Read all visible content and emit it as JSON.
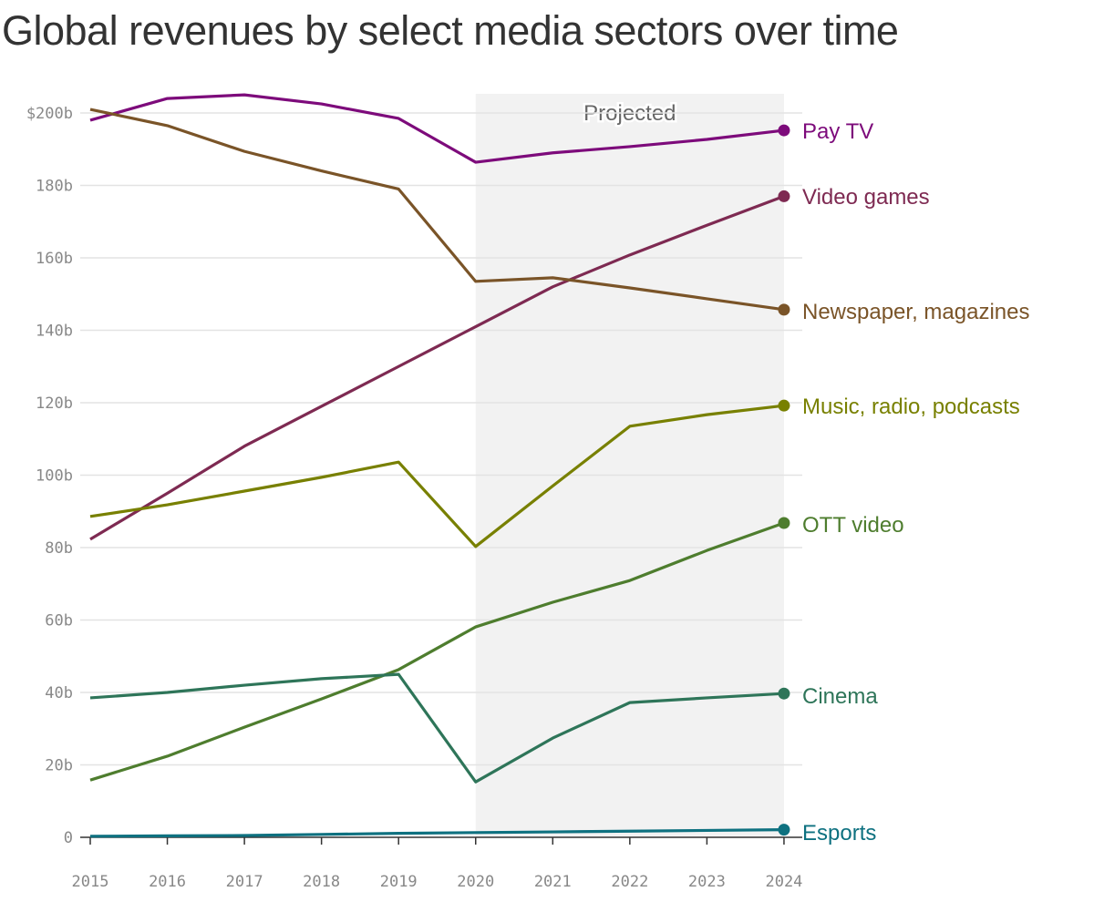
{
  "chart_data": {
    "type": "line",
    "title": "Global revenues by select media sectors over time",
    "xlabel": "",
    "ylabel": "",
    "x": [
      2015,
      2016,
      2017,
      2018,
      2019,
      2020,
      2021,
      2022,
      2023,
      2024
    ],
    "ylim": [
      0,
      200
    ],
    "y_ticks": [
      "0",
      "20b",
      "40b",
      "60b",
      "80b",
      "100b",
      "120b",
      "140b",
      "160b",
      "180b",
      "$200b"
    ],
    "x_ticks": [
      "2015",
      "2016",
      "2017",
      "2018",
      "2019",
      "2020",
      "2021",
      "2022",
      "2023",
      "2024"
    ],
    "grid": "horizontal",
    "legend": "inline labels at right end of lines",
    "annotation": {
      "text": "Projected",
      "from": 2020,
      "to": 2024
    },
    "series": [
      {
        "name": "Pay TV",
        "color": "#7d0b7b",
        "values": [
          198,
          204,
          205,
          202.5,
          198.5,
          186.4,
          189,
          190.7,
          192.7,
          195.2
        ]
      },
      {
        "name": "Video games",
        "color": "#7e2a52",
        "values": [
          82.3,
          95,
          108,
          119,
          130,
          141,
          152,
          160.8,
          169,
          177
        ]
      },
      {
        "name": "Newspaper, magazines",
        "color": "#7a5428",
        "values": [
          201,
          196.5,
          189.4,
          184,
          179,
          153.5,
          154.5,
          151.7,
          148.7,
          145.7
        ]
      },
      {
        "name": "Music, radio, podcasts",
        "color": "#788000",
        "values": [
          88.6,
          91.8,
          95.6,
          99.4,
          103.6,
          80.3,
          97,
          113.5,
          116.7,
          119.2
        ]
      },
      {
        "name": "OTT video",
        "color": "#4e7d2e",
        "values": [
          15.8,
          22.4,
          30.4,
          38.2,
          46.3,
          58.1,
          64.9,
          70.9,
          79.2,
          86.8
        ]
      },
      {
        "name": "Cinema",
        "color": "#2e7559",
        "values": [
          38.5,
          40,
          42,
          43.8,
          45,
          15.3,
          27.4,
          37.2,
          38.5,
          39.7
        ]
      },
      {
        "name": "Esports",
        "color": "#0e7180",
        "values": [
          0.3,
          0.4,
          0.5,
          0.8,
          1.1,
          1.3,
          1.5,
          1.7,
          1.9,
          2.1
        ]
      }
    ]
  }
}
